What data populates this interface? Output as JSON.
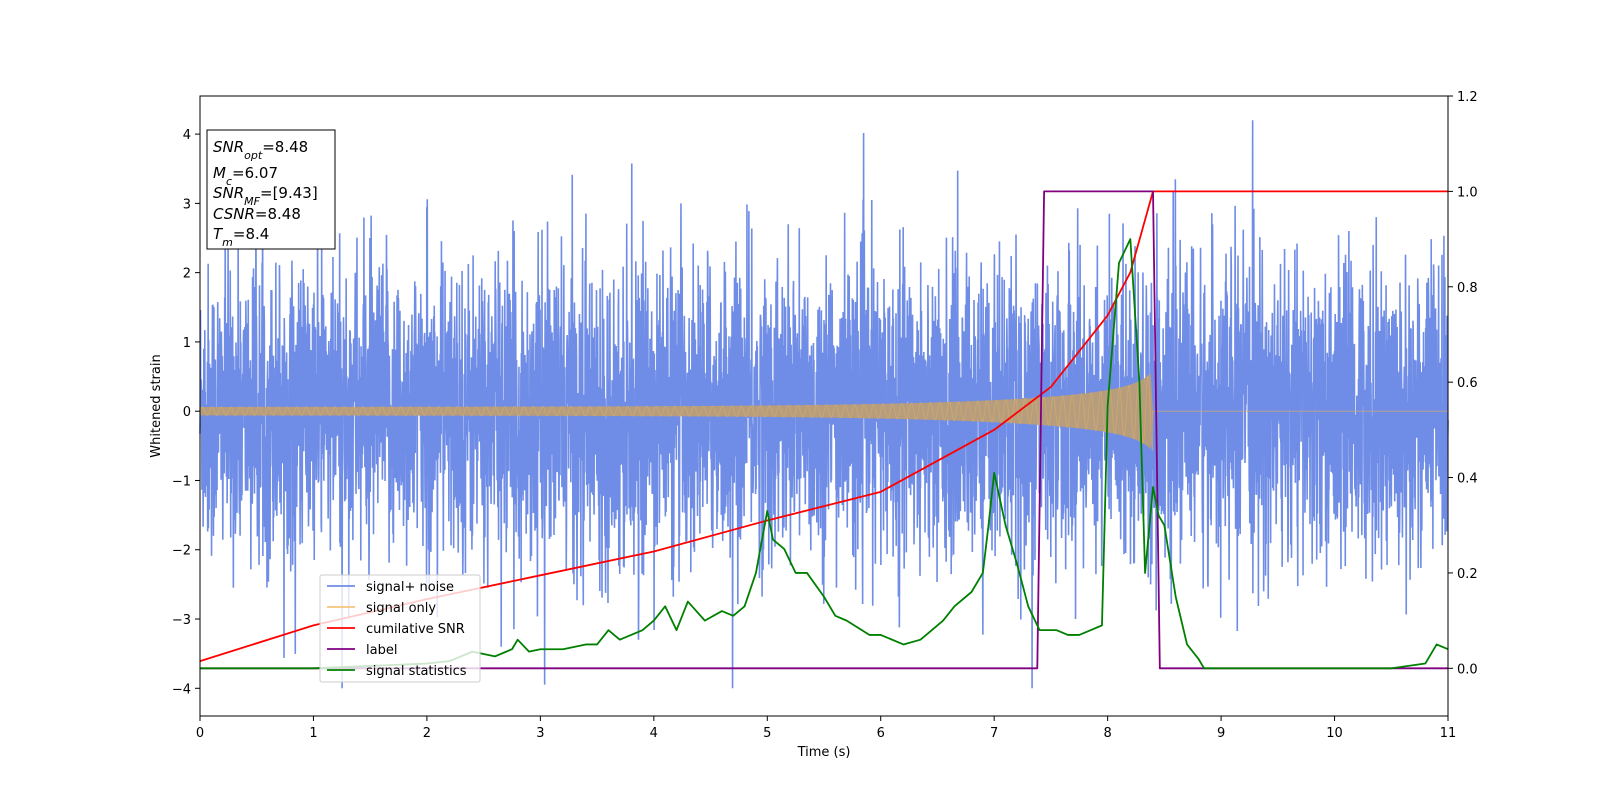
{
  "chart_data": {
    "type": "line",
    "xlabel": "Time (s)",
    "ylabel": "Whitened strain",
    "xlim": [
      0,
      11
    ],
    "ylim_left": [
      -4.4,
      4.55
    ],
    "ylim_right": [
      -0.1,
      1.2
    ],
    "x_ticks": [
      "0",
      "1",
      "2",
      "3",
      "4",
      "5",
      "6",
      "7",
      "8",
      "9",
      "10",
      "11"
    ],
    "y_ticks_left": [
      "4",
      "3",
      "2",
      "1",
      "0",
      "−1",
      "−2",
      "−3",
      "−4"
    ],
    "y_ticks_right": [
      "1.2",
      "1.0",
      "0.8",
      "0.6",
      "0.4",
      "0.2",
      "0.0"
    ],
    "annotations": {
      "snr_opt": {
        "main": "SNR",
        "sub": "opt",
        "value": "=8.48"
      },
      "mc": {
        "main": "M",
        "sub": "c",
        "value": "=6.07"
      },
      "snr_mf": {
        "main": "SNR",
        "sub": "MF",
        "value": "=[9.43]"
      },
      "csnr": {
        "main": "CSNR",
        "sub": "",
        "value": "=8.48"
      },
      "tm": {
        "main": "T",
        "sub": "m",
        "value": "=8.4"
      }
    },
    "legend_placement": "lower-left",
    "series": [
      {
        "name": "signal+ noise",
        "color": "#6f8de6",
        "axis": "left",
        "style": "noise",
        "spread": 1.0,
        "range": [
          -4.0,
          4.2
        ]
      },
      {
        "name": "signal only",
        "color": "#f5c47c",
        "axis": "left",
        "style": "chirp",
        "merger_time": 8.4,
        "peak_amplitude": 0.55,
        "start_amplitude": 0.05
      },
      {
        "name": "cumilative SNR",
        "color": "#ff0000",
        "axis": "right",
        "x": [
          0,
          1,
          2,
          3,
          4,
          5,
          6,
          7,
          7.5,
          8,
          8.2,
          8.4,
          11
        ],
        "y": [
          0.015,
          0.09,
          0.145,
          0.195,
          0.245,
          0.31,
          0.37,
          0.5,
          0.59,
          0.74,
          0.83,
          1.0,
          1.0
        ]
      },
      {
        "name": "label",
        "color": "#800080",
        "axis": "right",
        "x": [
          0,
          7.38,
          7.44,
          8.4,
          8.46,
          11
        ],
        "y": [
          0.0,
          0.0,
          1.0,
          1.0,
          0.0,
          0.0
        ]
      },
      {
        "name": "signal statistics",
        "color": "#008000",
        "axis": "right",
        "x": [
          0,
          1,
          1.5,
          2,
          2.2,
          2.4,
          2.6,
          2.75,
          2.8,
          2.9,
          3.0,
          3.2,
          3.4,
          3.5,
          3.6,
          3.7,
          3.8,
          3.9,
          4.0,
          4.1,
          4.2,
          4.3,
          4.45,
          4.6,
          4.7,
          4.8,
          4.9,
          5.0,
          5.05,
          5.15,
          5.25,
          5.35,
          5.5,
          5.6,
          5.7,
          5.9,
          6.0,
          6.2,
          6.35,
          6.45,
          6.55,
          6.65,
          6.8,
          6.9,
          6.95,
          7.0,
          7.1,
          7.2,
          7.3,
          7.4,
          7.55,
          7.65,
          7.75,
          7.85,
          7.95,
          8.0,
          8.1,
          8.2,
          8.28,
          8.33,
          8.4,
          8.45,
          8.5,
          8.6,
          8.7,
          8.8,
          8.85,
          8.9,
          9.0,
          9.5,
          10.0,
          10.5,
          10.8,
          10.9,
          11.0
        ],
        "y": [
          0.0,
          0.0,
          0.005,
          0.01,
          0.015,
          0.035,
          0.025,
          0.04,
          0.06,
          0.035,
          0.04,
          0.04,
          0.05,
          0.05,
          0.08,
          0.06,
          0.07,
          0.08,
          0.1,
          0.13,
          0.08,
          0.14,
          0.1,
          0.12,
          0.11,
          0.13,
          0.2,
          0.33,
          0.27,
          0.25,
          0.2,
          0.2,
          0.15,
          0.11,
          0.1,
          0.07,
          0.07,
          0.05,
          0.06,
          0.08,
          0.1,
          0.13,
          0.16,
          0.2,
          0.3,
          0.41,
          0.3,
          0.22,
          0.13,
          0.08,
          0.08,
          0.07,
          0.07,
          0.08,
          0.09,
          0.55,
          0.85,
          0.9,
          0.6,
          0.2,
          0.38,
          0.32,
          0.3,
          0.15,
          0.05,
          0.02,
          0.0,
          0.0,
          0.0,
          0.0,
          0.0,
          0.0,
          0.01,
          0.05,
          0.04
        ]
      }
    ]
  }
}
